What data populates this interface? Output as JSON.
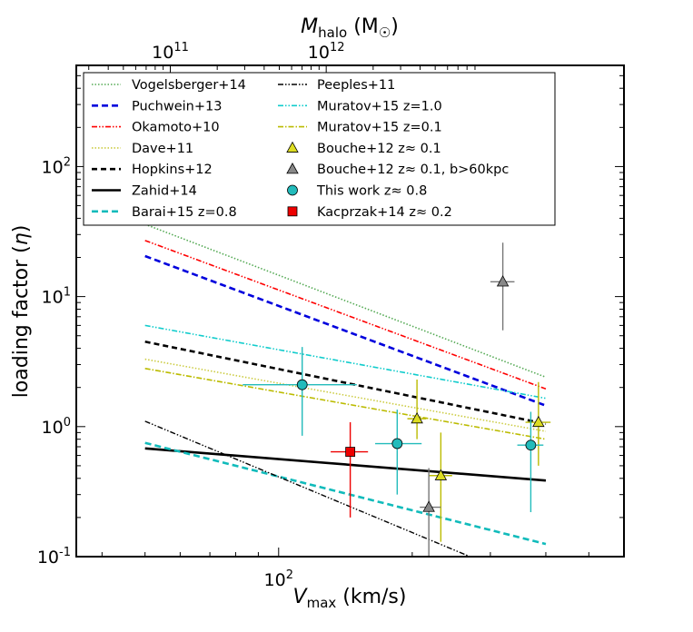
{
  "chart_data": {
    "type": "scatter",
    "xlabel": "V_max (km/s)",
    "xlabel_var": "V",
    "xlabel_sub": "max",
    "xlabel_unit": " (km/s)",
    "ylabel": "loading factor (η)",
    "ylabel_text": "loading factor (",
    "ylabel_sym": "η",
    "ylabel_close": ")",
    "top_xlabel_var": "M",
    "top_xlabel_sub": "halo",
    "top_xlabel_unit": " (M",
    "top_xlabel_sun": "☉",
    "top_xlabel_close": ")",
    "xscale": "log",
    "yscale": "log",
    "xlim": [
      35,
      600
    ],
    "ylim": [
      0.1,
      600
    ],
    "legend_position": "upper",
    "x_ticks": [
      {
        "value": 100,
        "base": "10",
        "exp": "2"
      }
    ],
    "y_ticks": [
      {
        "value": 0.1,
        "base": "10",
        "exp": "-1"
      },
      {
        "value": 1,
        "base": "10",
        "exp": "0"
      },
      {
        "value": 10,
        "base": "10",
        "exp": "1"
      },
      {
        "value": 100,
        "base": "10",
        "exp": "2"
      }
    ],
    "top_ticks": [
      {
        "value": 57,
        "base": "10",
        "exp": "11"
      },
      {
        "value": 128,
        "base": "10",
        "exp": "12"
      }
    ],
    "models": [
      {
        "name": "Vogelsberger+14",
        "color": "#55aa55",
        "dash": "1.5,2",
        "width": 1.6,
        "points": [
          [
            50,
            36
          ],
          [
            400,
            2.4
          ]
        ]
      },
      {
        "name": "Puchwein+13",
        "color": "#0000dd",
        "dash": "7,4",
        "width": 2.6,
        "points": [
          [
            50,
            20.5
          ],
          [
            400,
            1.45
          ]
        ]
      },
      {
        "name": "Okamoto+10",
        "color": "#ff0000",
        "dash": "6,2,1.5,2,1.5,2",
        "width": 1.6,
        "points": [
          [
            50,
            27
          ],
          [
            400,
            1.95
          ]
        ]
      },
      {
        "name": "Dave+11",
        "color": "#cccc44",
        "dash": "1.5,2",
        "width": 1.6,
        "points": [
          [
            50,
            3.3
          ],
          [
            400,
            0.92
          ]
        ]
      },
      {
        "name": "Hopkins+12",
        "color": "#000000",
        "dash": "6,4",
        "width": 2.6,
        "points": [
          [
            50,
            4.5
          ],
          [
            400,
            1.05
          ]
        ]
      },
      {
        "name": "Zahid+14",
        "color": "#000000",
        "dash": "",
        "width": 2.6,
        "points": [
          [
            50,
            0.68
          ],
          [
            400,
            0.385
          ]
        ]
      },
      {
        "name": "Barai+15 z=0.8",
        "color": "#11bbbb",
        "dash": "7,4",
        "width": 2.6,
        "points": [
          [
            50,
            0.75
          ],
          [
            400,
            0.125
          ]
        ]
      },
      {
        "name": "Peeples+11",
        "color": "#000000",
        "dash": "6,2,1.5,2,1.5,2",
        "width": 1.4,
        "points": [
          [
            50,
            1.1
          ],
          [
            270,
            0.1
          ]
        ]
      },
      {
        "name": "Muratov+15 z=1.0",
        "color": "#11cccc",
        "dash": "6,2,1.5,2,1.5,2",
        "width": 1.6,
        "points": [
          [
            50,
            6.0
          ],
          [
            400,
            1.65
          ]
        ]
      },
      {
        "name": "Muratov+15 z=0.1",
        "color": "#bbbb00",
        "dash": "6,2,1.5,2",
        "width": 1.6,
        "points": [
          [
            50,
            2.8
          ],
          [
            400,
            0.8
          ]
        ]
      }
    ],
    "observations": [
      {
        "name": "Bouche+12 z≈ 0.1",
        "marker": "triangle",
        "color": "#dddd22",
        "err_color": "#bbbb00",
        "points": [
          {
            "x": 205,
            "y": 1.15,
            "xerr": [
              195,
              215
            ],
            "yerr": [
              0.8,
              2.3
            ]
          },
          {
            "x": 232,
            "y": 0.42,
            "xerr": [
              218,
              246
            ],
            "yerr": [
              0.13,
              0.9
            ]
          },
          {
            "x": 385,
            "y": 1.08,
            "xerr": [
              360,
              410
            ],
            "yerr": [
              0.5,
              2.2
            ]
          }
        ]
      },
      {
        "name": "Bouche+12 z≈ 0.1, b>60kpc",
        "marker": "triangle",
        "color": "#888888",
        "err_color": "#777777",
        "points": [
          {
            "x": 218,
            "y": 0.24,
            "xerr": [
              208,
              232
            ],
            "yerr": [
              0.1,
              0.48
            ]
          },
          {
            "x": 320,
            "y": 13.0,
            "xerr": [
              300,
              340
            ],
            "yerr": [
              5.5,
              26.0
            ]
          }
        ]
      },
      {
        "name": "This work z≈ 0.8",
        "marker": "circle",
        "color": "#22bbbb",
        "err_color": "#22bbbb",
        "points": [
          {
            "x": 113,
            "y": 2.1,
            "xerr": [
              83,
              150
            ],
            "yerr": [
              0.85,
              4.1
            ]
          },
          {
            "x": 185,
            "y": 0.74,
            "xerr": [
              165,
              210
            ],
            "yerr": [
              0.3,
              1.35
            ]
          },
          {
            "x": 370,
            "y": 0.72,
            "xerr": [
              345,
              395
            ],
            "yerr": [
              0.22,
              1.3
            ]
          }
        ]
      },
      {
        "name": "Kacprzak+14 z≈ 0.2",
        "marker": "square",
        "color": "#ee0000",
        "err_color": "#ee0000",
        "points": [
          {
            "x": 145,
            "y": 0.64,
            "xerr": [
              131,
              159
            ],
            "yerr": [
              0.2,
              1.08
            ]
          }
        ]
      }
    ],
    "legend_col1": [
      {
        "label": "Vogelsberger+14",
        "type": "line",
        "ref": 0
      },
      {
        "label": "Puchwein+13",
        "type": "line",
        "ref": 1
      },
      {
        "label": "Okamoto+10",
        "type": "line",
        "ref": 2
      },
      {
        "label": "Dave+11",
        "type": "line",
        "ref": 3
      },
      {
        "label": "Hopkins+12",
        "type": "line",
        "ref": 4
      },
      {
        "label": "Zahid+14",
        "type": "line",
        "ref": 5
      },
      {
        "label": "Barai+15 z=0.8",
        "type": "line",
        "ref": 6
      }
    ],
    "legend_col2": [
      {
        "label": "Peeples+11",
        "type": "line",
        "ref": 7
      },
      {
        "label": "Muratov+15 z=1.0",
        "type": "line",
        "ref": 8
      },
      {
        "label": "Muratov+15 z=0.1",
        "type": "line",
        "ref": 9
      },
      {
        "label": "Bouche+12 z≈ 0.1",
        "type": "marker",
        "ref": 0
      },
      {
        "label": "Bouche+12 z≈ 0.1, b>60kpc",
        "type": "marker",
        "ref": 1
      },
      {
        "label": "This work z≈ 0.8",
        "type": "marker",
        "ref": 2
      },
      {
        "label": "Kacprzak+14 z≈ 0.2",
        "type": "marker",
        "ref": 3
      }
    ]
  }
}
